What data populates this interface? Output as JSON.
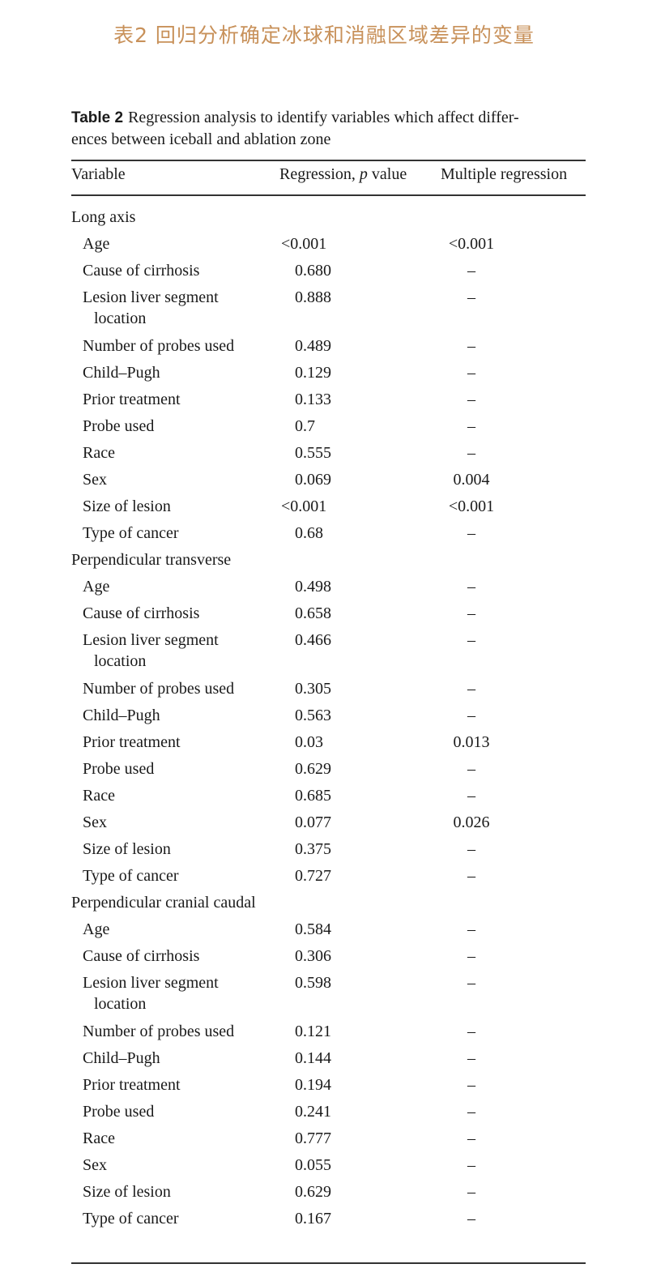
{
  "title": "表2 回归分析确定冰球和消融区域差异的变量",
  "caption": {
    "label": "Table 2",
    "text_line1": "Regression analysis to identify variables which affect differ-",
    "text_line2": "ences between iceball and ablation zone"
  },
  "colors": {
    "title": "#c8915a",
    "text": "#1a1a1a",
    "rule": "#333333"
  },
  "table": {
    "headers": {
      "variable": "Variable",
      "regression_prefix": "Regression, ",
      "regression_p": "p",
      "regression_suffix": " value",
      "multiple": "Multiple regression"
    },
    "sections": [
      {
        "name": "Long axis",
        "rows": [
          [
            "Age",
            "<0.001",
            "<0.001"
          ],
          [
            "Cause of cirrhosis",
            "0.680",
            "–"
          ],
          [
            "Lesion liver segment",
            "0.888",
            "–",
            "location"
          ],
          [
            "Number of probes used",
            "0.489",
            "–"
          ],
          [
            "Child–Pugh",
            "0.129",
            "–"
          ],
          [
            "Prior treatment",
            "0.133",
            "–"
          ],
          [
            "Probe used",
            "0.7",
            "–"
          ],
          [
            "Race",
            "0.555",
            "–"
          ],
          [
            "Sex",
            "0.069",
            "0.004"
          ],
          [
            "Size of lesion",
            "<0.001",
            "<0.001"
          ],
          [
            "Type of cancer",
            "0.68",
            "–"
          ]
        ]
      },
      {
        "name": "Perpendicular transverse",
        "rows": [
          [
            "Age",
            "0.498",
            "–"
          ],
          [
            "Cause of cirrhosis",
            "0.658",
            "–"
          ],
          [
            "Lesion liver segment",
            "0.466",
            "–",
            "location"
          ],
          [
            "Number of probes used",
            "0.305",
            "–"
          ],
          [
            "Child–Pugh",
            "0.563",
            "–"
          ],
          [
            "Prior treatment",
            "0.03",
            "0.013"
          ],
          [
            "Probe used",
            "0.629",
            "–"
          ],
          [
            "Race",
            "0.685",
            "–"
          ],
          [
            "Sex",
            "0.077",
            "0.026"
          ],
          [
            "Size of lesion",
            "0.375",
            "–"
          ],
          [
            "Type of cancer",
            "0.727",
            "–"
          ]
        ]
      },
      {
        "name": "Perpendicular cranial caudal",
        "rows": [
          [
            "Age",
            "0.584",
            "–"
          ],
          [
            "Cause of cirrhosis",
            "0.306",
            "–"
          ],
          [
            "Lesion liver segment",
            "0.598",
            "–",
            "location"
          ],
          [
            "Number of probes used",
            "0.121",
            "–"
          ],
          [
            "Child–Pugh",
            "0.144",
            "–"
          ],
          [
            "Prior treatment",
            "0.194",
            "–"
          ],
          [
            "Probe used",
            "0.241",
            "–"
          ],
          [
            "Race",
            "0.777",
            "–"
          ],
          [
            "Sex",
            "0.055",
            "–"
          ],
          [
            "Size of lesion",
            "0.629",
            "–"
          ],
          [
            "Type of cancer",
            "0.167",
            "–"
          ]
        ]
      }
    ]
  }
}
